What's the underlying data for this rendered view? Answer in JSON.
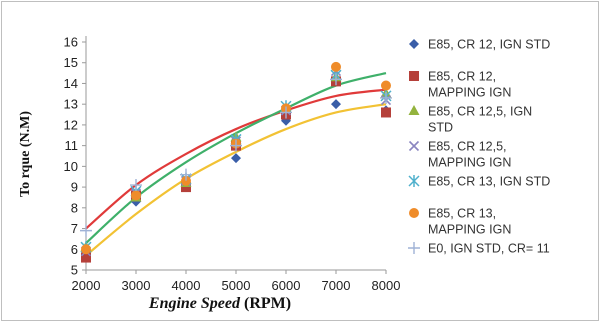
{
  "chart_data": {
    "type": "scatter",
    "xlabel_italic": "Engine Speed",
    "xlabel_unit": "(RPM)",
    "ylabel": "To rque (N.M)",
    "xlim": [
      2000,
      8000
    ],
    "ylim": [
      5,
      16
    ],
    "xticks": [
      "2000",
      "3000",
      "4000",
      "5000",
      "6000",
      "7000",
      "8000"
    ],
    "yticks": [
      "5",
      "6",
      "7",
      "8",
      "9",
      "10",
      "11",
      "12",
      "13",
      "14",
      "15",
      "16"
    ],
    "grid": false,
    "legend_position": "right",
    "x": [
      2000,
      3000,
      4000,
      5000,
      6000,
      7000,
      8000
    ],
    "series": [
      {
        "name": "E85, CR 12, IGN STD",
        "marker": "diamond",
        "color": "#3a5ea8",
        "legend_lines": [
          "E85, CR 12, IGN STD"
        ],
        "values": [
          5.8,
          8.3,
          9.0,
          10.4,
          12.2,
          13.0,
          12.7
        ]
      },
      {
        "name": "E85, CR 12, MAPPING IGN",
        "marker": "square",
        "color": "#b5403a",
        "legend_lines": [
          "E85, CR 12,",
          "MAPPING IGN"
        ],
        "values": [
          5.6,
          8.6,
          9.0,
          11.0,
          12.5,
          14.1,
          12.6
        ]
      },
      {
        "name": "E85, CR 12,5, IGN STD",
        "marker": "triangle",
        "color": "#93b33d",
        "legend_lines": [
          "E85, CR 12,5, IGN",
          "STD"
        ],
        "values": [
          6.1,
          8.5,
          9.2,
          11.4,
          12.8,
          14.3,
          13.5
        ]
      },
      {
        "name": "E85, CR 12,5, MAPPING IGN",
        "marker": "x",
        "color": "#8a86c0",
        "legend_lines": [
          "E85, CR 12,5,",
          "MAPPING IGN"
        ],
        "values": [
          5.9,
          8.7,
          9.3,
          11.2,
          12.7,
          14.6,
          13.2
        ]
      },
      {
        "name": "E85, CR 13, IGN STD",
        "marker": "star",
        "color": "#4fb0cc",
        "legend_lines": [
          "E85, CR 13, IGN STD"
        ],
        "values": [
          6.1,
          8.8,
          9.4,
          11.3,
          12.9,
          14.4,
          13.4
        ]
      },
      {
        "name": "E85, CR 13, MAPPING IGN",
        "marker": "circle",
        "color": "#ef8c2a",
        "legend_lines": [
          "E85, CR 13,",
          "MAPPING IGN"
        ],
        "values": [
          6.0,
          8.6,
          9.3,
          11.1,
          12.8,
          14.8,
          13.9
        ]
      },
      {
        "name": "E0, IGN STD, CR= 11",
        "marker": "plus",
        "color": "#9fb2d6",
        "legend_lines": [
          "E0, IGN STD, CR= 11"
        ],
        "values": [
          6.9,
          9.1,
          9.6,
          11.0,
          12.6,
          14.2,
          13.3
        ]
      }
    ],
    "trendlines": [
      {
        "color": "#e03a3a",
        "values": [
          7.0,
          9.1,
          10.6,
          11.8,
          12.7,
          13.4,
          13.7
        ]
      },
      {
        "color": "#3fb06a",
        "values": [
          6.3,
          8.5,
          10.2,
          11.6,
          12.8,
          13.9,
          14.5
        ]
      },
      {
        "color": "#f2c234",
        "values": [
          5.7,
          7.7,
          9.4,
          10.7,
          11.8,
          12.6,
          13.0
        ]
      }
    ]
  }
}
